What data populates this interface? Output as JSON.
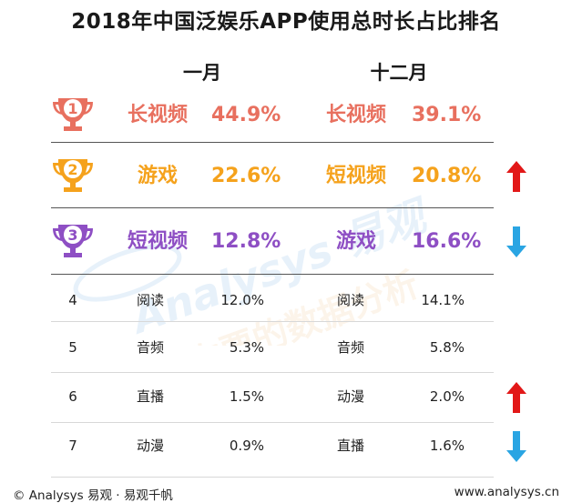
{
  "title": "2018年中国泛娱乐APP使用总时长占比排名",
  "columns": {
    "jan": "一月",
    "dec": "十二月"
  },
  "colors": {
    "rank1": "#e8705f",
    "rank2": "#f5a21c",
    "rank3": "#8e4fc4",
    "up": "#e21818",
    "down": "#2aa5e3"
  },
  "chart_data": {
    "type": "table",
    "title": "2018年中国泛娱乐APP使用总时长占比排名",
    "columns": [
      "一月",
      "十二月"
    ],
    "unit": "%",
    "rows": [
      {
        "rank": "1",
        "jan_name": "长视频",
        "jan_value": "44.9%",
        "dec_name": "长视频",
        "dec_value": "39.1%",
        "change": ""
      },
      {
        "rank": "2",
        "jan_name": "游戏",
        "jan_value": "22.6%",
        "dec_name": "短视频",
        "dec_value": "20.8%",
        "change": "up"
      },
      {
        "rank": "3",
        "jan_name": "短视频",
        "jan_value": "12.8%",
        "dec_name": "游戏",
        "dec_value": "16.6%",
        "change": "down"
      },
      {
        "rank": "4",
        "jan_name": "阅读",
        "jan_value": "12.0%",
        "dec_name": "阅读",
        "dec_value": "14.1%",
        "change": ""
      },
      {
        "rank": "5",
        "jan_name": "音频",
        "jan_value": "5.3%",
        "dec_name": "音频",
        "dec_value": "5.8%",
        "change": ""
      },
      {
        "rank": "6",
        "jan_name": "直播",
        "jan_value": "1.5%",
        "dec_name": "动漫",
        "dec_value": "2.0%",
        "change": "up"
      },
      {
        "rank": "7",
        "jan_name": "动漫",
        "jan_value": "0.9%",
        "dec_name": "直播",
        "dec_value": "1.6%",
        "change": "down"
      }
    ]
  },
  "watermark": {
    "brand": "Analysys 易观",
    "slogan": "你要的数据分析"
  },
  "footer": {
    "left": "© Analysys 易观 · 易观千帆",
    "right": "www.analysys.cn"
  }
}
